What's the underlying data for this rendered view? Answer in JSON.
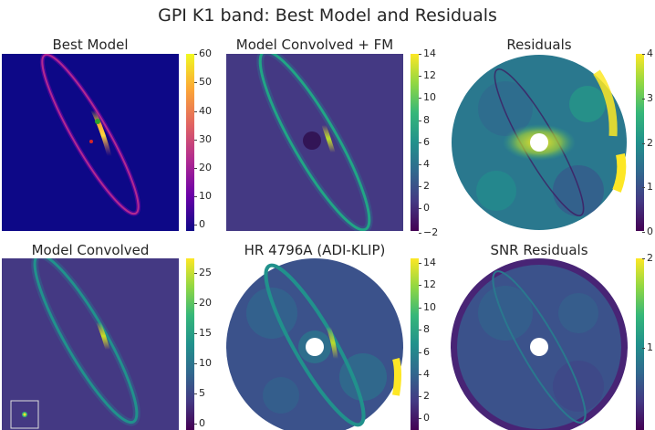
{
  "figure": {
    "title": "GPI K1 band: Best Model and Residuals"
  },
  "chart_data": [
    {
      "type": "heatmap",
      "id": "best_model",
      "title": "Best Model",
      "colormap": "plasma",
      "colorbar": {
        "ticks": [
          "0",
          "10",
          "20",
          "30",
          "40",
          "50",
          "60"
        ],
        "vmin": -2,
        "vmax": 60
      }
    },
    {
      "type": "heatmap",
      "id": "model_conv_fm",
      "title": "Model Convolved + FM",
      "colormap": "viridis",
      "colorbar": {
        "ticks": [
          "−2",
          "0",
          "2",
          "4",
          "6",
          "8",
          "10",
          "12",
          "14"
        ],
        "vmin": -2.3,
        "vmax": 14
      }
    },
    {
      "type": "heatmap",
      "id": "residuals",
      "title": "Residuals",
      "colormap": "viridis",
      "colorbar": {
        "ticks": [
          "0",
          "1",
          "2",
          "3",
          "4"
        ],
        "vmin": -0.05,
        "vmax": 4
      }
    },
    {
      "type": "heatmap",
      "id": "model_convolved",
      "title": "Model Convolved",
      "colormap": "viridis",
      "colorbar": {
        "ticks": [
          "0",
          "5",
          "10",
          "15",
          "20",
          "25"
        ],
        "vmin": -0.4,
        "vmax": 27.5
      }
    },
    {
      "type": "heatmap",
      "id": "hr4796a",
      "title": "HR 4796A (ADI-KLIP)",
      "colormap": "viridis",
      "colorbar": {
        "ticks": [
          "0",
          "2",
          "4",
          "6",
          "8",
          "10",
          "12",
          "14"
        ],
        "vmin": -1,
        "vmax": 14
      }
    },
    {
      "type": "heatmap",
      "id": "snr_residuals",
      "title": "SNR Residuals",
      "colormap": "viridis",
      "colorbar": {
        "ticks": [
          "1",
          "2"
        ],
        "vmin": 0,
        "vmax": 2
      }
    }
  ]
}
